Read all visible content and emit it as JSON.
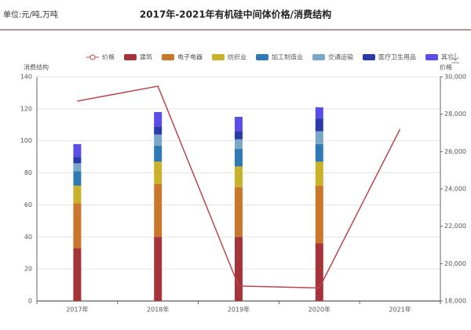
{
  "chart_data": {
    "type": "bar",
    "stacked": true,
    "title": "2017年-2021年有机硅中间体价格/消费结构",
    "unit": "单位:元/吨,万吨",
    "y_label": "消费结构",
    "y2_label": "价格",
    "categories": [
      "2017年",
      "2018年",
      "2019年",
      "2020年",
      "2021年"
    ],
    "series": [
      {
        "name": "价格",
        "type": "line",
        "axis": "y2",
        "color": "#b8474b",
        "values": [
          28700,
          29500,
          18800,
          18700,
          27200
        ]
      },
      {
        "name": "建筑",
        "color": "#a5333a",
        "values": [
          33,
          40,
          40,
          36,
          null
        ]
      },
      {
        "name": "电子电器",
        "color": "#c8772b",
        "values": [
          28,
          33,
          31,
          36,
          null
        ]
      },
      {
        "name": "纺织业",
        "color": "#c9b22a",
        "values": [
          11,
          14,
          13,
          15,
          null
        ]
      },
      {
        "name": "加工制造业",
        "color": "#2f7ab4",
        "values": [
          9,
          10,
          11,
          11,
          null
        ]
      },
      {
        "name": "交通运输",
        "color": "#7aa6c8",
        "values": [
          5,
          7,
          6,
          8,
          null
        ]
      },
      {
        "name": "医疗卫生用品",
        "color": "#2a3aa8",
        "values": [
          4,
          5,
          5,
          8,
          null
        ]
      },
      {
        "name": "其它",
        "color": "#5a4de8",
        "values": [
          8,
          9,
          9,
          7,
          null
        ]
      }
    ],
    "ylim": [
      0,
      140
    ],
    "yticks": [
      0,
      20,
      40,
      60,
      80,
      100,
      120,
      140
    ],
    "y2lim": [
      18000,
      30000
    ],
    "y2ticks": [
      {
        "value": 18000,
        "label": "18,000"
      },
      {
        "value": 20000,
        "label": "20,000"
      },
      {
        "value": 22000,
        "label": "22,000"
      },
      {
        "value": 24000,
        "label": "24,000"
      },
      {
        "value": 26000,
        "label": "26,000"
      },
      {
        "value": 28000,
        "label": "28,000"
      },
      {
        "value": 30000,
        "label": "30,000"
      }
    ],
    "grid": true
  }
}
